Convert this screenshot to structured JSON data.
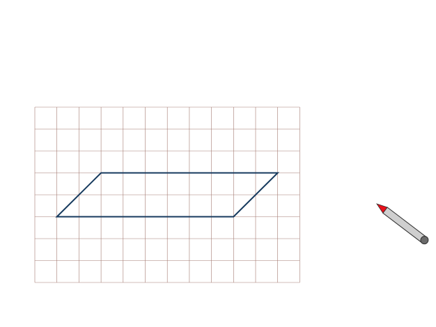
{
  "grid": {
    "columns": 12,
    "rows": 8,
    "line_color": "#a47a72",
    "background": "#ffffff"
  },
  "parallelogram": {
    "vertices_grid_units": [
      [
        1,
        5
      ],
      [
        3,
        3
      ],
      [
        11,
        3
      ],
      [
        9,
        5
      ]
    ],
    "stroke_color": "#163a5e"
  },
  "pencil": {
    "icon": "pencil-icon",
    "tip_color": "#e8101a",
    "body_color": "#cfcfcf",
    "end_color": "#6a6a6a",
    "outline_color": "#2f2f2f"
  }
}
